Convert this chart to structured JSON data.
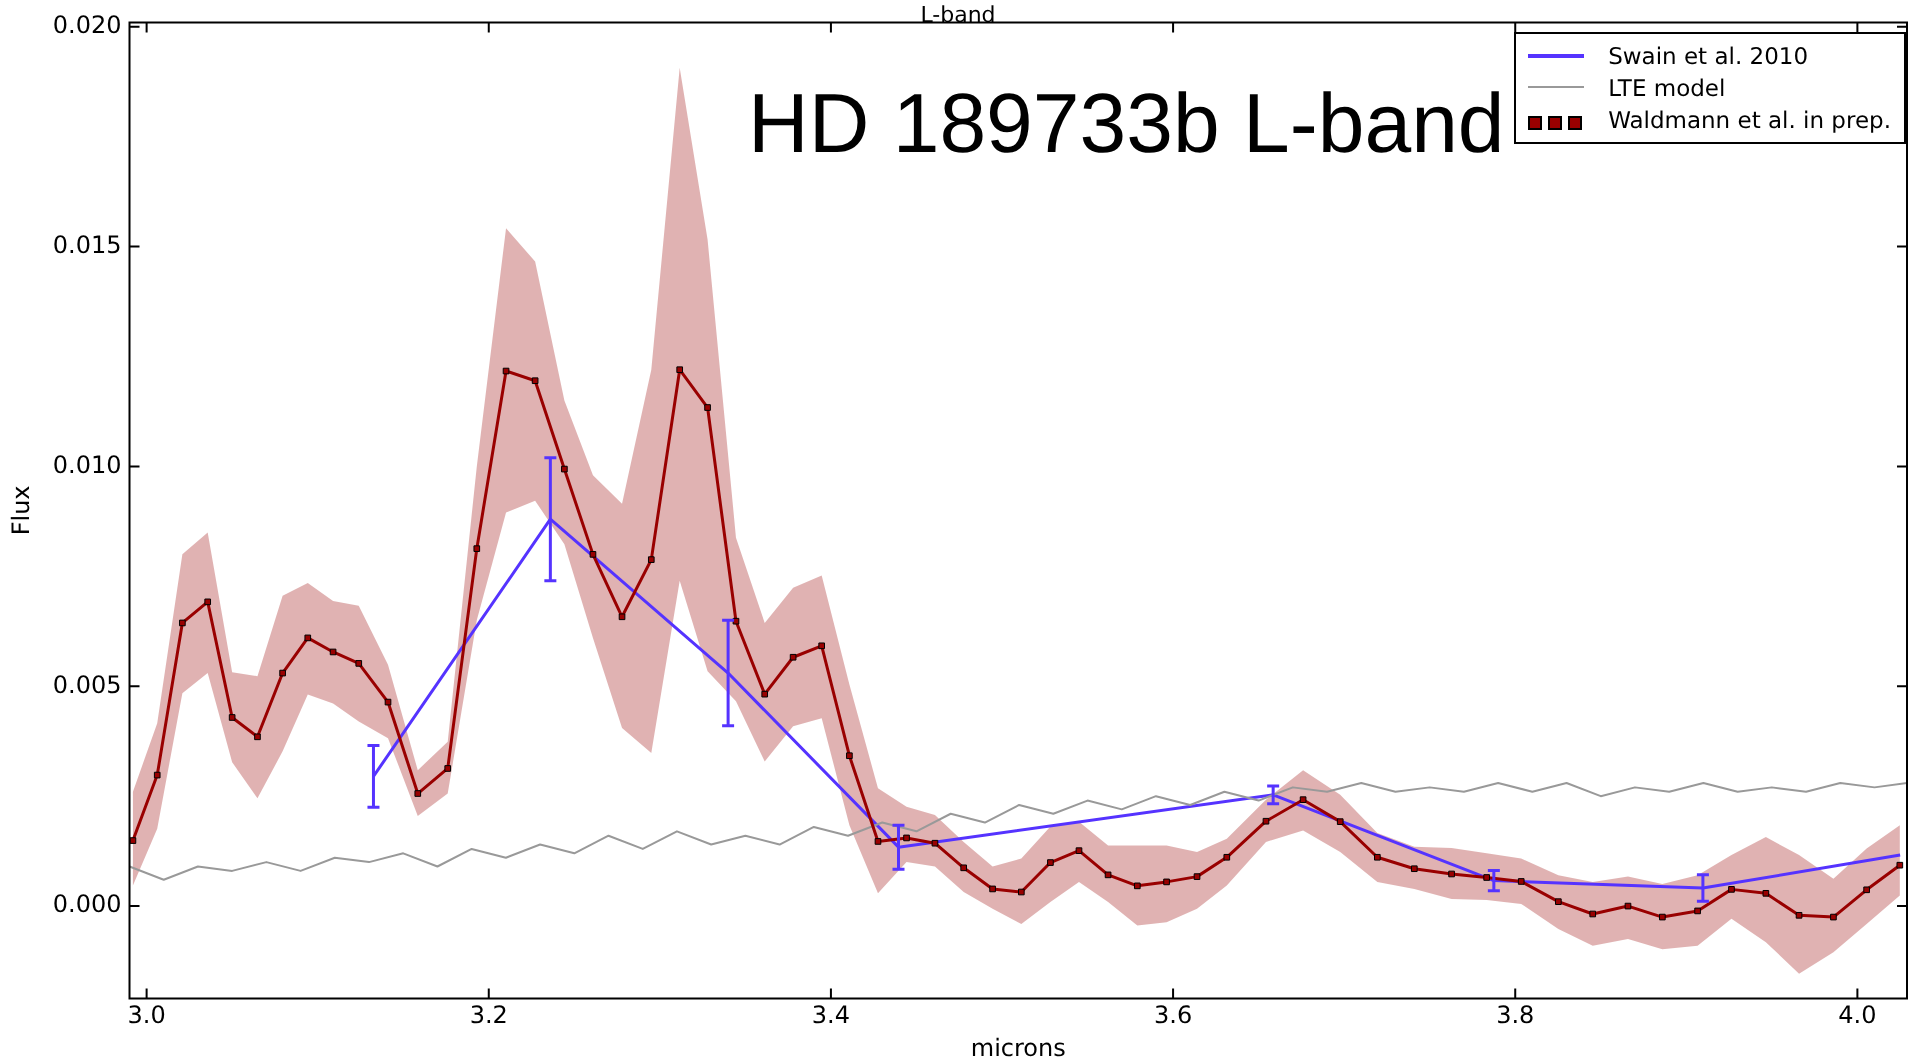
{
  "chart_data": {
    "type": "line",
    "title": "L-band",
    "xlabel": "microns",
    "ylabel": "Flux",
    "annotations": [
      "HD 189733b L-band"
    ],
    "xlim": [
      2.99,
      4.029
    ],
    "xticks": [
      {
        "value": 3,
        "label": "3.0"
      },
      3.2,
      3.4,
      3.6,
      3.8,
      {
        "value": 4,
        "label": "4.0"
      }
    ],
    "ylim": [
      -0.0021,
      0.0201
    ],
    "yticks": [
      {
        "value": 0,
        "label": "0.000"
      },
      0.005,
      {
        "value": 0.01,
        "label": "0.010"
      },
      0.015,
      {
        "value": 0.02,
        "label": "0.020"
      }
    ],
    "grid": false,
    "legend": "top right",
    "series": [
      {
        "name": "Swain et al. 2010",
        "color": "#5533ff",
        "marker": "none",
        "x": [
          3.1326,
          3.236,
          3.3399,
          3.4395,
          3.6585,
          3.7875,
          3.9097,
          4.025
        ],
        "values": [
          0.00295,
          0.0088,
          0.0053,
          0.00134,
          0.00253,
          0.00058,
          0.00041,
          0.00116
        ],
        "errors": [
          0.0007,
          0.0014,
          0.0012,
          0.0005,
          0.0002,
          0.00023,
          0.0003,
          null
        ]
      },
      {
        "name": "LTE model",
        "color": "#999999",
        "marker": "none",
        "x": [
          2.99,
          3.01,
          3.03,
          3.05,
          3.07,
          3.09,
          3.11,
          3.13,
          3.15,
          3.17,
          3.19,
          3.21,
          3.23,
          3.25,
          3.27,
          3.29,
          3.31,
          3.33,
          3.35,
          3.37,
          3.39,
          3.41,
          3.43,
          3.45,
          3.47,
          3.49,
          3.51,
          3.53,
          3.55,
          3.57,
          3.59,
          3.61,
          3.63,
          3.65,
          3.67,
          3.69,
          3.71,
          3.73,
          3.75,
          3.77,
          3.79,
          3.81,
          3.83,
          3.85,
          3.87,
          3.89,
          3.91,
          3.93,
          3.95,
          3.97,
          3.99,
          4.01,
          4.029
        ],
        "values": [
          0.0009,
          0.0006,
          0.0009,
          0.0008,
          0.001,
          0.0008,
          0.0011,
          0.001,
          0.0012,
          0.0009,
          0.0013,
          0.0011,
          0.0014,
          0.0012,
          0.0016,
          0.0013,
          0.0017,
          0.0014,
          0.0016,
          0.0014,
          0.0018,
          0.0016,
          0.0019,
          0.0017,
          0.0021,
          0.0019,
          0.0023,
          0.0021,
          0.0024,
          0.0022,
          0.0025,
          0.0023,
          0.0026,
          0.0024,
          0.0027,
          0.0026,
          0.0028,
          0.0026,
          0.0027,
          0.0026,
          0.0028,
          0.0026,
          0.0028,
          0.0025,
          0.0027,
          0.0026,
          0.0028,
          0.0026,
          0.0027,
          0.0026,
          0.0028,
          0.0027,
          0.0028
        ]
      },
      {
        "name": "Waldmann et al. in prep.",
        "color": "#990000",
        "marker": "square",
        "x": [
          2.992,
          3.0062,
          3.0209,
          3.0357,
          3.05,
          3.0648,
          3.0795,
          3.0942,
          3.109,
          3.124,
          3.1411,
          3.1585,
          3.176,
          3.193,
          3.2101,
          3.2271,
          3.2442,
          3.2609,
          3.2779,
          3.295,
          3.3116,
          3.3279,
          3.3445,
          3.3613,
          3.3779,
          3.3946,
          3.4108,
          3.4275,
          3.4442,
          3.4608,
          3.4776,
          3.4945,
          3.5113,
          3.5283,
          3.545,
          3.562,
          3.5791,
          3.5962,
          3.614,
          3.6314,
          3.6543,
          3.676,
          3.6977,
          3.7194,
          3.741,
          3.7628,
          3.7833,
          3.8035,
          3.8252,
          3.8453,
          3.8659,
          3.886,
          3.9066,
          3.9264,
          3.9465,
          3.9659,
          3.986,
          4.0054,
          4.0248
        ],
        "values": [
          0.00149,
          0.00298,
          0.00644,
          0.00692,
          0.00429,
          0.00385,
          0.0053,
          0.0061,
          0.00578,
          0.00552,
          0.00464,
          0.00256,
          0.00313,
          0.00813,
          0.01217,
          0.01195,
          0.00994,
          0.008,
          0.00658,
          0.00788,
          0.0122,
          0.01134,
          0.00648,
          0.00482,
          0.00566,
          0.00592,
          0.00342,
          0.00147,
          0.00155,
          0.00143,
          0.00087,
          0.00039,
          0.00032,
          0.00099,
          0.00126,
          0.00071,
          0.00046,
          0.00055,
          0.00067,
          0.00111,
          0.00193,
          0.00242,
          0.00192,
          0.00111,
          0.00085,
          0.00073,
          0.00065,
          0.00056,
          0.0001,
          -0.00018,
          0,
          -0.00025,
          -0.00011,
          0.00038,
          0.00029,
          -0.00021,
          -0.00025,
          0.00037,
          0.00093
        ],
        "upper": [
          0.0026,
          0.00416,
          0.008,
          0.0085,
          0.00532,
          0.00523,
          0.00706,
          0.00735,
          0.00694,
          0.00683,
          0.00549,
          0.00309,
          0.00374,
          0.01,
          0.01542,
          0.01466,
          0.0115,
          0.0098,
          0.00915,
          0.0122,
          0.01907,
          0.01516,
          0.00838,
          0.00644,
          0.00724,
          0.00752,
          0.00504,
          0.00268,
          0.00226,
          0.00207,
          0.00146,
          0.0009,
          0.00108,
          0.00181,
          0.00192,
          0.00138,
          0.00138,
          0.00138,
          0.00123,
          0.00153,
          0.00242,
          0.00309,
          0.00253,
          0.00166,
          0.00135,
          0.00132,
          0.0012,
          0.00108,
          0.0007,
          0.00055,
          0.00067,
          0.0005,
          0.0007,
          0.00116,
          0.00157,
          0.00116,
          0.00062,
          0.00131,
          0.00184
        ],
        "lower": [
          0.00047,
          0.00176,
          0.00484,
          0.0053,
          0.00327,
          0.00245,
          0.00352,
          0.00481,
          0.00461,
          0.0042,
          0.00382,
          0.00205,
          0.00256,
          0.0065,
          0.00895,
          0.00922,
          0.00823,
          0.0061,
          0.00405,
          0.00348,
          0.0074,
          0.00534,
          0.00466,
          0.00329,
          0.00409,
          0.00427,
          0.00184,
          0.00029,
          0.001,
          0.0009,
          0.00032,
          -6e-05,
          -0.00041,
          9e-05,
          0.00055,
          9e-05,
          -0.00044,
          -0.00037,
          -6e-05,
          0.00047,
          0.00146,
          0.00172,
          0.00123,
          0.00055,
          0.00039,
          0.00016,
          0.00014,
          5e-05,
          -0.00052,
          -0.0009,
          -0.00075,
          -0.00098,
          -0.0009,
          -0.00029,
          -0.00082,
          -0.00154,
          -0.00105,
          -0.00041,
          0.00024
        ]
      }
    ]
  }
}
